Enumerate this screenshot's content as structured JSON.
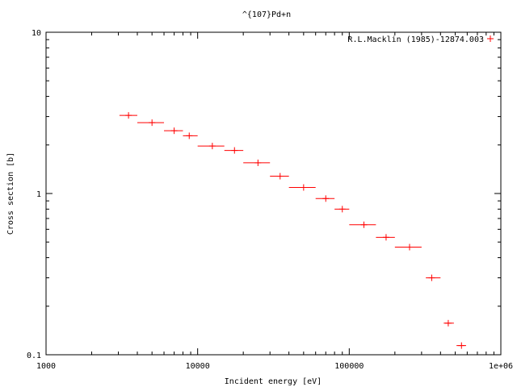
{
  "chart_data": {
    "type": "scatter",
    "title": "^{107}Pd+n",
    "xlabel": "Incident energy [eV]",
    "ylabel": "Cross section [b]",
    "xscale": "log",
    "yscale": "log",
    "xlim": [
      1000,
      1000000
    ],
    "ylim": [
      0.1,
      10
    ],
    "xticks": [
      {
        "value": 1000,
        "label": "1000"
      },
      {
        "value": 10000,
        "label": "10000"
      },
      {
        "value": 100000,
        "label": "100000"
      },
      {
        "value": 1000000,
        "label": "1e+06"
      }
    ],
    "yticks": [
      {
        "value": 0.1,
        "label": "0.1"
      },
      {
        "value": 1,
        "label": "1"
      },
      {
        "value": 10,
        "label": "10"
      }
    ],
    "grid": false,
    "legend_position": "top-right",
    "series": [
      {
        "name": "R.L.Macklin (1985)-12874.003",
        "color": "#ff0000",
        "marker": "plus",
        "points": [
          {
            "x": 3500,
            "y": 3.05,
            "xmin": 3050,
            "xmax": 4000
          },
          {
            "x": 5000,
            "y": 2.75,
            "xmin": 4000,
            "xmax": 6000
          },
          {
            "x": 7000,
            "y": 2.45,
            "xmin": 6000,
            "xmax": 8000
          },
          {
            "x": 8800,
            "y": 2.28,
            "xmin": 8000,
            "xmax": 10000
          },
          {
            "x": 12500,
            "y": 1.97,
            "xmin": 10000,
            "xmax": 15000
          },
          {
            "x": 17500,
            "y": 1.85,
            "xmin": 15000,
            "xmax": 20000
          },
          {
            "x": 25000,
            "y": 1.55,
            "xmin": 20000,
            "xmax": 30000
          },
          {
            "x": 35000,
            "y": 1.28,
            "xmin": 30000,
            "xmax": 40000
          },
          {
            "x": 50000,
            "y": 1.09,
            "xmin": 40000,
            "xmax": 60000
          },
          {
            "x": 70000,
            "y": 0.93,
            "xmin": 60000,
            "xmax": 80000
          },
          {
            "x": 90000,
            "y": 0.8,
            "xmin": 80000,
            "xmax": 100000
          },
          {
            "x": 125000,
            "y": 0.64,
            "xmin": 100000,
            "xmax": 150000
          },
          {
            "x": 175000,
            "y": 0.535,
            "xmin": 150000,
            "xmax": 200000
          },
          {
            "x": 250000,
            "y": 0.465,
            "xmin": 200000,
            "xmax": 300000
          },
          {
            "x": 350000,
            "y": 0.3,
            "xmin": 320000,
            "xmax": 400000
          },
          {
            "x": 450000,
            "y": 0.157,
            "xmin": 420000,
            "xmax": 490000
          },
          {
            "x": 550000,
            "y": 0.114,
            "xmin": 510000,
            "xmax": 590000
          }
        ]
      }
    ]
  }
}
